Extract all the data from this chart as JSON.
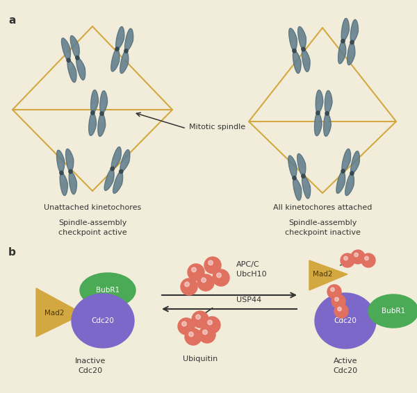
{
  "bg_color": "#f2edda",
  "panel_a_label": "a",
  "panel_b_label": "b",
  "spindle_color": "#d4a840",
  "spindle_lw": 1.5,
  "left_label1": "Unattached kinetochores",
  "left_label2": "Spindle-assembly\ncheckpoint active",
  "right_label1": "All kinetochores attached",
  "right_label2": "Spindle-assembly\ncheckpoint inactive",
  "mitotic_spindle_label": "Mitotic spindle",
  "chr_color1": "#607d8b",
  "chr_color2": "#37474f",
  "chr_color3": "#78909c",
  "chr_highlight": "#4fc3f7",
  "inactive_label": "Inactive\nCdc20",
  "active_label": "Active\nCdc20",
  "ubiquitin_label": "Ubiquitin",
  "apc_label": "APC/C\nUbcH10",
  "usp44_label": "USP44",
  "mad2_color": "#d4a840",
  "bubr1_color": "#4aaa55",
  "cdc20_color": "#7b68c8",
  "ubiquitin_color": "#e07060",
  "text_color": "#333333",
  "arrow_color": "#333333",
  "chain_color": "#3a8a50",
  "figw": 6.0,
  "figh": 5.66
}
